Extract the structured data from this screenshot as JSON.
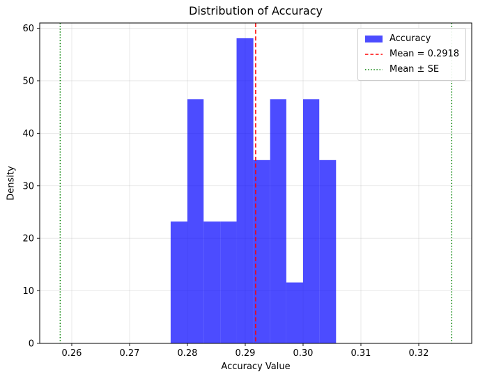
{
  "title": "Distribution of Accuracy",
  "xlabel": "Accuracy Value",
  "ylabel": "Density",
  "legend": {
    "position": "upper right",
    "items": [
      {
        "label": "Accuracy",
        "swatch": "patch",
        "color": "rgba(0,0,255,0.7)"
      },
      {
        "label": "Mean = 0.2918",
        "swatch": "dashed",
        "color": "#ff0000"
      },
      {
        "label": "Mean ± SE",
        "swatch": "dotted",
        "color": "#008000"
      }
    ]
  },
  "chart_data": {
    "type": "bar",
    "subtype": "histogram-density",
    "title": "Distribution of Accuracy",
    "xlabel": "Accuracy Value",
    "ylabel": "Density",
    "bin_edges": [
      0.2771,
      0.28,
      0.2828,
      0.2857,
      0.2885,
      0.2914,
      0.2943,
      0.2971,
      0.3,
      0.3028,
      0.3057
    ],
    "densities": [
      23.2,
      46.5,
      23.2,
      23.2,
      58.1,
      34.9,
      46.5,
      11.6,
      46.5,
      34.9
    ],
    "mean_line": {
      "value": 0.2918,
      "label": "Mean = 0.2918",
      "color": "#ff0000",
      "style": "dashed"
    },
    "se_lines": {
      "values": [
        0.258,
        0.3257
      ],
      "label": "Mean ± SE",
      "color": "#008000",
      "style": "dotted"
    },
    "xticks": [
      0.26,
      0.27,
      0.28,
      0.29,
      0.3,
      0.31,
      0.32
    ],
    "xtick_labels": [
      "0.26",
      "0.27",
      "0.28",
      "0.29",
      "0.30",
      "0.31",
      "0.32"
    ],
    "yticks": [
      0,
      10,
      20,
      30,
      40,
      50,
      60
    ],
    "ytick_labels": [
      "0",
      "10",
      "20",
      "30",
      "40",
      "50",
      "60"
    ],
    "xlim": [
      0.25446,
      0.32916
    ],
    "ylim": [
      0,
      61
    ],
    "grid": true,
    "grid_color": "rgba(176,176,176,0.35)",
    "bar_color": "rgba(0,0,255,0.7)",
    "legend_position": "upper right"
  }
}
